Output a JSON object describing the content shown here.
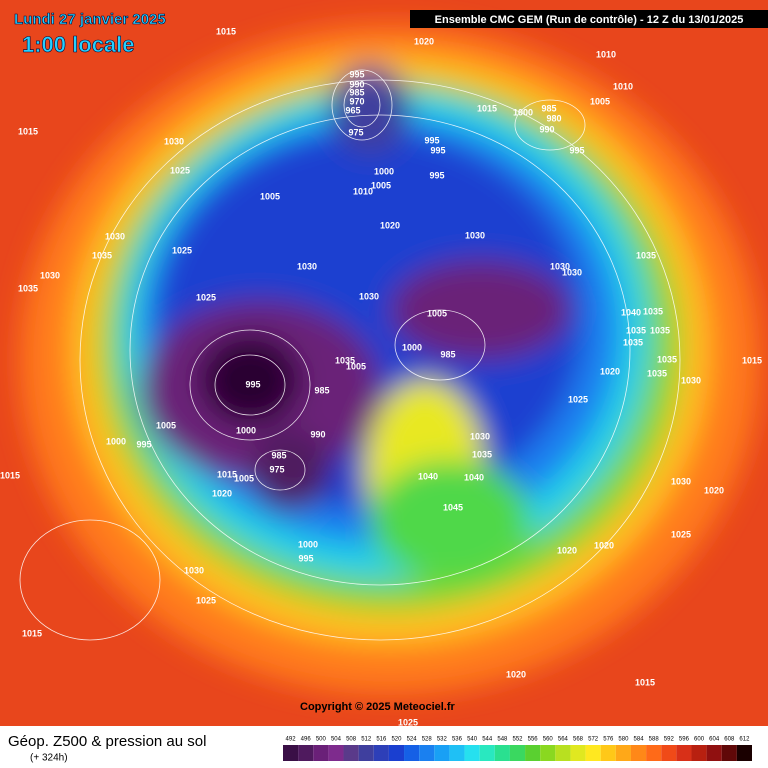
{
  "header": {
    "date": "Lundi 27 janvier 2025",
    "time": "1:00 locale",
    "model": "Ensemble CMC GEM  (Run de contrôle)  - 12 Z du 13/01/2025"
  },
  "copyright": "Copyright © 2025 Meteociel.fr",
  "legend": {
    "title": "Géop. Z500 & pression au sol",
    "lead": "(+ 324h)",
    "values": [
      492,
      496,
      500,
      504,
      508,
      512,
      516,
      520,
      524,
      528,
      532,
      536,
      540,
      544,
      548,
      552,
      556,
      560,
      564,
      568,
      572,
      576,
      580,
      584,
      588,
      592,
      596,
      600,
      604,
      608,
      612
    ],
    "colors": [
      "#3a0f46",
      "#4f1a5e",
      "#6a2078",
      "#7e2b8d",
      "#5a3a8a",
      "#3f3f9e",
      "#2d3fb8",
      "#1a3fd0",
      "#1560e6",
      "#1a80f0",
      "#19a0f5",
      "#1fc0f5",
      "#26e0ef",
      "#29e8c0",
      "#2ae090",
      "#3ad860",
      "#5ad030",
      "#8ad820",
      "#b8e020",
      "#e0e820",
      "#ffe820",
      "#ffc818",
      "#ffa818",
      "#ff8818",
      "#ff6a18",
      "#f04a18",
      "#d83018",
      "#b82010",
      "#901010",
      "#600808",
      "#1a0000"
    ]
  },
  "isobar_labels": [
    1015,
    1020,
    1010,
    1010,
    995,
    990,
    985,
    970,
    965,
    975,
    1015,
    1000,
    985,
    980,
    990,
    995,
    1005,
    995,
    995,
    995,
    1000,
    1005,
    1010,
    1015,
    1030,
    1025,
    1005,
    1030,
    1035,
    1025,
    1030,
    1035,
    1030,
    1025,
    1030,
    1020,
    1030,
    1030,
    1030,
    1035,
    1040,
    1035,
    1035,
    1035,
    1035,
    1035,
    1035,
    1030,
    1015,
    1005,
    1000,
    985,
    1025,
    1020,
    995,
    985,
    1035,
    1005,
    1000,
    990,
    1005,
    995,
    1000,
    985,
    975,
    1015,
    1005,
    1020,
    1030,
    1035,
    1040,
    1040,
    1045,
    1030,
    1020,
    1025,
    1020,
    1020,
    1000,
    995,
    1030,
    1025,
    1015,
    1015,
    1020,
    1015,
    1025
  ]
}
